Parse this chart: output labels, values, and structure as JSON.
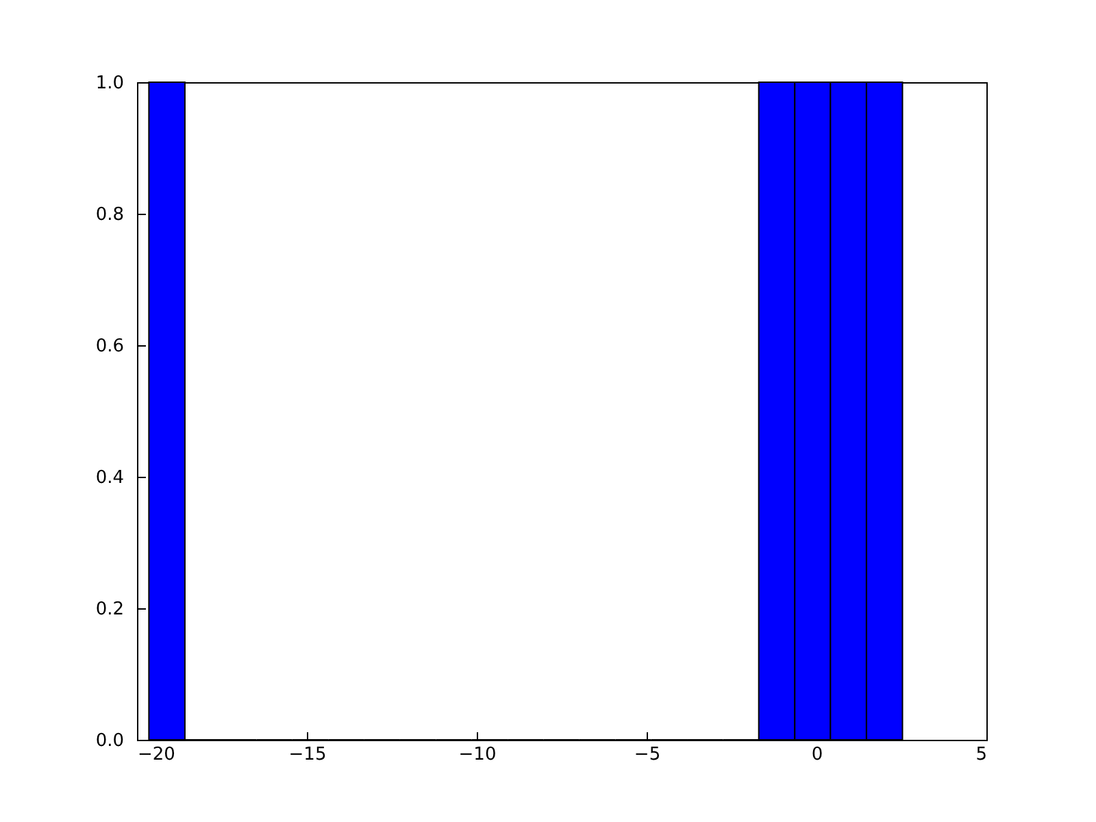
{
  "chart_data": {
    "type": "histogram",
    "bins": [
      -19.65,
      -18.59,
      -17.54,
      -16.48,
      -15.43,
      -14.37,
      -13.31,
      -12.26,
      -11.2,
      -10.15,
      -9.09,
      -8.03,
      -6.98,
      -5.92,
      -4.87,
      -3.81,
      -2.75,
      -1.7,
      -0.64,
      0.41,
      1.47,
      2.53
    ],
    "values": [
      1,
      0,
      0,
      0,
      0,
      0,
      0,
      0,
      0,
      0,
      0,
      0,
      0,
      0,
      0,
      0,
      0,
      1,
      1,
      1,
      1
    ],
    "color": "#0000ff",
    "xlim": [
      -20,
      5
    ],
    "xticks": [
      -20,
      -15,
      -10,
      -5,
      0,
      5
    ],
    "ylim": [
      0,
      1
    ],
    "yticks": [
      {
        "value": 0,
        "label": "0.0"
      },
      {
        "value": 0.2,
        "label": "0.2"
      },
      {
        "value": 0.4,
        "label": "0.4"
      },
      {
        "value": 0.6,
        "label": "0.6"
      },
      {
        "value": 0.8,
        "label": "0.8"
      },
      {
        "value": 1,
        "label": "1.0"
      }
    ],
    "grid": false
  }
}
